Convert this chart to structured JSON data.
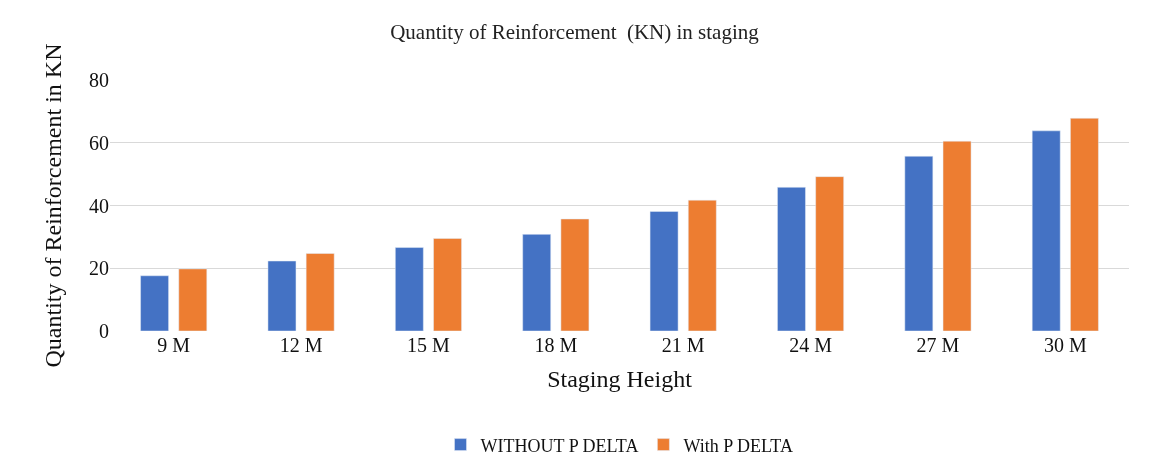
{
  "chart_data": {
    "type": "bar",
    "title": "Quantity of Reinforcement  (KN) in staging",
    "xlabel": "Staging Height",
    "ylabel": "Quantity of Reinforcement in KN",
    "categories": [
      "9 M",
      "12 M",
      "15 M",
      "18 M",
      "21 M",
      "24 M",
      "27 M",
      "30 M"
    ],
    "series": [
      {
        "name": "WITHOUT P DELTA",
        "color": "#4472c4",
        "values": [
          17.6,
          22.3,
          26.6,
          30.8,
          38.1,
          45.8,
          55.7,
          63.8
        ]
      },
      {
        "name": "With P DELTA",
        "color": "#ed7d31",
        "values": [
          19.8,
          24.7,
          29.5,
          35.7,
          41.7,
          49.2,
          60.5,
          67.8
        ]
      }
    ],
    "ylim": [
      0,
      80
    ],
    "yticks": [
      0,
      20,
      40,
      60,
      80
    ],
    "grid": "y",
    "legend": "bottom"
  }
}
